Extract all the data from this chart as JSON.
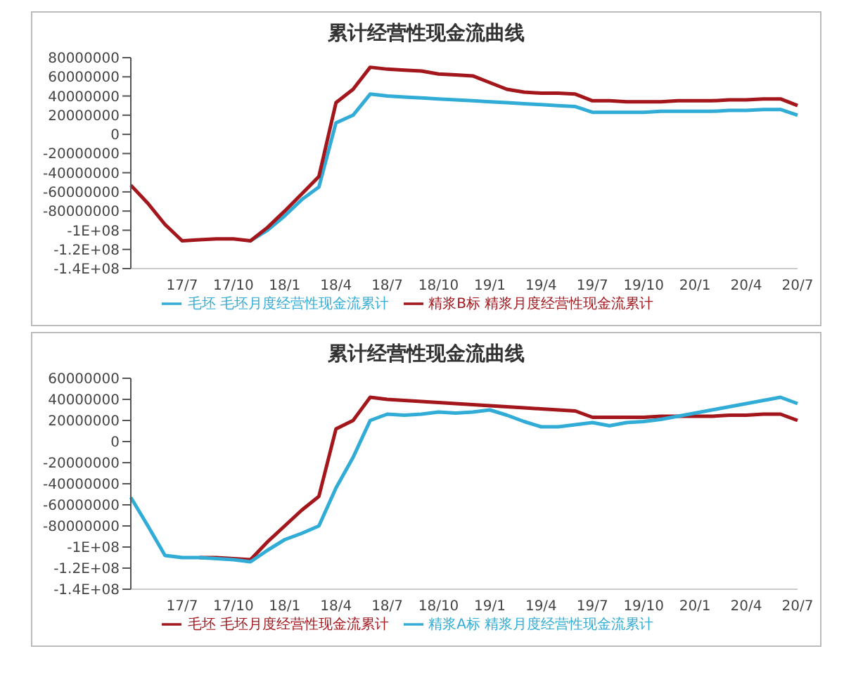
{
  "chart_data": [
    {
      "type": "line",
      "title": "累计经营性现金流曲线",
      "categories": [
        null,
        null,
        null,
        "17/7",
        null,
        null,
        "17/10",
        null,
        null,
        "18/1",
        null,
        null,
        "18/4",
        null,
        null,
        "18/7",
        null,
        null,
        "18/10",
        null,
        null,
        "19/1",
        null,
        null,
        "19/4",
        null,
        null,
        "19/7",
        null,
        null,
        "19/10",
        null,
        null,
        "20/1",
        null,
        null,
        "20/4",
        null,
        null,
        "20/7"
      ],
      "series": [
        {
          "name": "毛坯 毛坯月度经营性现金流累计",
          "color": "#31acd6",
          "values": [
            null,
            null,
            null,
            null,
            null,
            null,
            null,
            -111000000,
            -100000000,
            -85000000,
            -68000000,
            -55000000,
            12000000,
            20000000,
            42000000,
            40000000,
            39000000,
            38000000,
            37000000,
            36000000,
            35000000,
            34000000,
            33000000,
            32000000,
            31000000,
            30000000,
            29000000,
            23000000,
            23000000,
            23000000,
            23000000,
            24000000,
            24000000,
            24000000,
            24000000,
            25000000,
            25000000,
            26000000,
            26000000,
            20000000
          ]
        },
        {
          "name": "精浆B标 精浆月度经营性现金流累计",
          "color": "#a3161c",
          "values": [
            -53000000,
            -72000000,
            -94000000,
            -111000000,
            -110000000,
            -109000000,
            -109000000,
            -111000000,
            -97000000,
            -80000000,
            -62000000,
            -44000000,
            33000000,
            47000000,
            70000000,
            68000000,
            67000000,
            66000000,
            63000000,
            62000000,
            61000000,
            54000000,
            47000000,
            44000000,
            43000000,
            43000000,
            42000000,
            35000000,
            35000000,
            34000000,
            34000000,
            34000000,
            35000000,
            35000000,
            35000000,
            36000000,
            36000000,
            37000000,
            37000000,
            30000000
          ]
        }
      ],
      "ylim": [
        -140000000,
        80000000
      ],
      "yticks": [
        80000000,
        60000000,
        40000000,
        20000000,
        0,
        -20000000,
        -40000000,
        -60000000,
        -80000000,
        {
          "value": -100000000,
          "label": "-1E+08"
        },
        {
          "value": -120000000,
          "label": "-1.2E+08"
        },
        {
          "value": -140000000,
          "label": "-1.4E+08"
        }
      ],
      "grid": false,
      "legend": "bottom"
    },
    {
      "type": "line",
      "title": "累计经营性现金流曲线",
      "categories": [
        null,
        null,
        null,
        "17/7",
        null,
        null,
        "17/10",
        null,
        null,
        "18/1",
        null,
        null,
        "18/4",
        null,
        null,
        "18/7",
        null,
        null,
        "18/10",
        null,
        null,
        "19/1",
        null,
        null,
        "19/4",
        null,
        null,
        "19/7",
        null,
        null,
        "19/10",
        null,
        null,
        "20/1",
        null,
        null,
        "20/4",
        null,
        null,
        "20/7"
      ],
      "series": [
        {
          "name": "毛坯 毛坯月度经营性现金流累计",
          "color": "#a3161c",
          "values": [
            null,
            null,
            null,
            null,
            -110000000,
            -110000000,
            -111000000,
            -112000000,
            -95000000,
            -80000000,
            -65000000,
            -52000000,
            12000000,
            20000000,
            42000000,
            40000000,
            39000000,
            38000000,
            37000000,
            36000000,
            35000000,
            34000000,
            33000000,
            32000000,
            31000000,
            30000000,
            29000000,
            23000000,
            23000000,
            23000000,
            23000000,
            24000000,
            24000000,
            24000000,
            24000000,
            25000000,
            25000000,
            26000000,
            26000000,
            20000000
          ]
        },
        {
          "name": "精浆A标 精浆月度经营性现金流累计",
          "color": "#31acd6",
          "values": [
            -53000000,
            -80000000,
            -108000000,
            -110000000,
            -110000000,
            -111000000,
            -112000000,
            -114000000,
            -103000000,
            -93000000,
            -87000000,
            -80000000,
            -44000000,
            -15000000,
            20000000,
            26000000,
            25000000,
            26000000,
            28000000,
            27000000,
            28000000,
            30000000,
            25000000,
            19000000,
            14000000,
            14000000,
            16000000,
            18000000,
            15000000,
            18000000,
            19000000,
            21000000,
            24000000,
            27000000,
            30000000,
            33000000,
            36000000,
            39000000,
            42000000,
            36000000
          ]
        }
      ],
      "ylim": [
        -140000000,
        60000000
      ],
      "yticks": [
        60000000,
        40000000,
        20000000,
        0,
        -20000000,
        -40000000,
        -60000000,
        -80000000,
        {
          "value": -100000000,
          "label": "-1E+08"
        },
        {
          "value": -120000000,
          "label": "-1.2E+08"
        },
        {
          "value": -140000000,
          "label": "-1.4E+08"
        }
      ],
      "grid": false,
      "legend": "bottom"
    }
  ]
}
